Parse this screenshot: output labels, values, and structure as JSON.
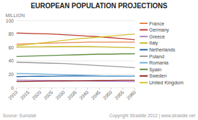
{
  "chart_data": {
    "type": "line",
    "title": "EUROPEAN POPULATION PROJECTIONS",
    "y_label": "MILLION",
    "x": [
      2010,
      2015,
      2020,
      2025,
      2030,
      2035,
      2040,
      2045,
      2050,
      2055,
      2060
    ],
    "xlim": [
      2010,
      2060
    ],
    "xticks": [
      2010,
      2015,
      2020,
      2025,
      2030,
      2035,
      2040,
      2045,
      2050,
      2055,
      2060
    ],
    "ylim": [
      0,
      100
    ],
    "yticks": [
      0,
      20,
      40,
      60,
      80,
      100
    ],
    "grid": true,
    "legend": "upper right",
    "series": [
      {
        "name": "France",
        "color": "#e8824a",
        "values": [
          65.0,
          65.5,
          66.0,
          66.5,
          67.0,
          67.5,
          68.0,
          68.0,
          68.0,
          68.0,
          68.0
        ]
      },
      {
        "name": "Germany",
        "color": "#c0392b",
        "values": [
          81.5,
          81.0,
          80.5,
          80.0,
          79.0,
          78.0,
          77.0,
          76.0,
          74.5,
          73.0,
          71.5
        ]
      },
      {
        "name": "Greece",
        "color": "#b07cc6",
        "values": [
          11.3,
          11.1,
          10.9,
          10.7,
          10.5,
          10.3,
          10.1,
          9.9,
          9.7,
          9.5,
          9.3
        ]
      },
      {
        "name": "Italy",
        "color": "#c8b820",
        "values": [
          60.5,
          60.8,
          61.0,
          61.2,
          61.5,
          61.5,
          61.5,
          61.0,
          60.5,
          60.0,
          59.5
        ]
      },
      {
        "name": "Netherlands",
        "color": "#1a5fa8",
        "values": [
          16.6,
          16.9,
          17.1,
          17.3,
          17.4,
          17.5,
          17.5,
          17.5,
          17.4,
          17.3,
          17.2
        ]
      },
      {
        "name": "Poland",
        "color": "#999999",
        "values": [
          38.0,
          37.5,
          37.0,
          36.5,
          36.0,
          35.0,
          34.0,
          33.0,
          32.0,
          31.0,
          30.0
        ]
      },
      {
        "name": "Romania",
        "color": "#6baed6",
        "values": [
          21.4,
          21.0,
          20.5,
          20.0,
          19.5,
          19.0,
          18.5,
          18.0,
          17.5,
          17.0,
          17.0
        ]
      },
      {
        "name": "Spain",
        "color": "#5a8a3a",
        "values": [
          46.5,
          47.0,
          47.5,
          48.0,
          48.5,
          49.0,
          49.5,
          50.0,
          50.0,
          50.5,
          50.5
        ]
      },
      {
        "name": "Sweden",
        "color": "#8b2020",
        "values": [
          9.4,
          9.6,
          9.8,
          10.0,
          10.2,
          10.4,
          10.5,
          10.7,
          10.8,
          11.0,
          11.1
        ]
      },
      {
        "name": "United Kingdom",
        "color": "#d4c227",
        "values": [
          62.5,
          64.5,
          66.5,
          68.5,
          70.5,
          72.5,
          74.0,
          75.5,
          77.0,
          78.5,
          80.0
        ]
      }
    ],
    "annotations": [
      "Source: Eurostat",
      "Copyright Straddle 2012 | www.straddle.net"
    ]
  }
}
